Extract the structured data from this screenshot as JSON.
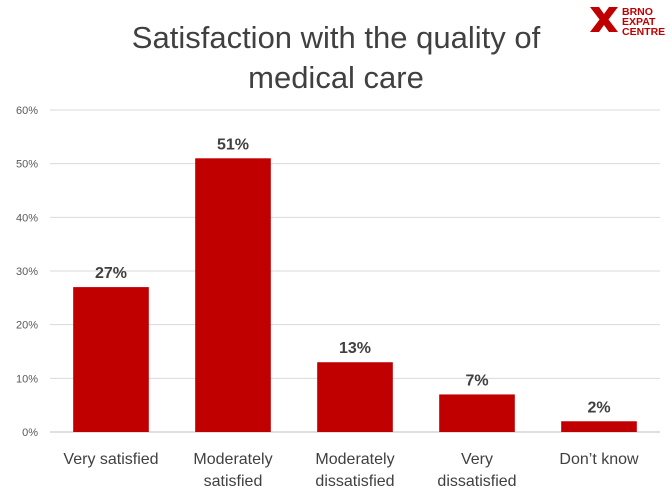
{
  "brand": {
    "logo_lines": [
      "BRNO",
      "EXPAT",
      "CENTRE"
    ],
    "logo_icon": "x-mark-icon",
    "accent_color": "#c00000"
  },
  "chart_data": {
    "type": "bar",
    "title": "Satisfaction with the quality of medical care",
    "title_lines": [
      "Satisfaction with the quality of",
      "medical care"
    ],
    "categories": [
      "Very satisfied",
      "Moderately satisfied",
      "Moderately dissatisfied",
      "Very dissatisfied",
      "Don’t know"
    ],
    "category_lines": [
      [
        "Very satisfied"
      ],
      [
        "Moderately",
        "satisfied"
      ],
      [
        "Moderately",
        "dissatisfied"
      ],
      [
        "Very",
        "dissatisfied"
      ],
      [
        "Don’t know"
      ]
    ],
    "values": [
      27,
      51,
      13,
      7,
      2
    ],
    "data_labels": [
      "27%",
      "51%",
      "13%",
      "7%",
      "2%"
    ],
    "ylim": [
      0,
      60
    ],
    "y_ticks": [
      0,
      10,
      20,
      30,
      40,
      50,
      60
    ],
    "y_tick_labels": [
      "0%",
      "10%",
      "20%",
      "30%",
      "40%",
      "50%",
      "60%"
    ],
    "grid": true,
    "legend": "none",
    "bar_color": "#c00000"
  }
}
